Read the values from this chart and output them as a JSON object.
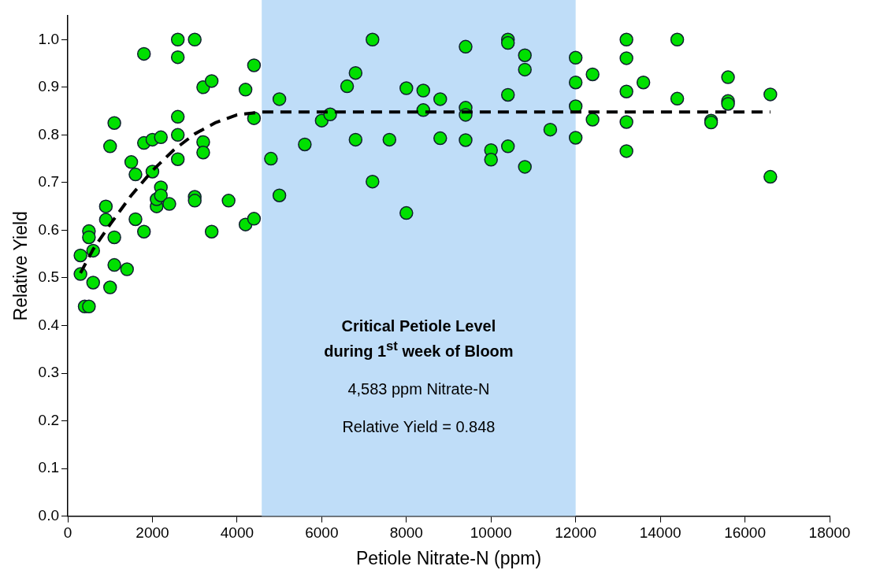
{
  "chart_data": {
    "type": "scatter",
    "xlabel": "Petiole Nitrate-N (ppm)",
    "ylabel": "Relative Yield",
    "xlim": [
      0,
      18000
    ],
    "xticks": [
      0,
      2000,
      4000,
      6000,
      8000,
      10000,
      12000,
      14000,
      16000,
      18000
    ],
    "ylim": [
      0,
      1.05
    ],
    "yticks": [
      {
        "value": 0,
        "label": "0.0"
      },
      0.1,
      0.2,
      0.3,
      0.4,
      0.5,
      0.6,
      0.7,
      0.8,
      0.9,
      {
        "value": 1,
        "label": "1.0"
      }
    ],
    "grid": false,
    "legend": false,
    "marker": "circle",
    "bands": [
      {
        "axis": "x",
        "from": 4583,
        "to": 12000,
        "color": "#bfddf8"
      }
    ],
    "annotations": [
      "Critical Petiole Level during 1$^{st}$ week of Bloom",
      "4,583 ppm Nitrate-N",
      "Relative Yield = 0.848"
    ],
    "series": [
      {
        "color": "#00e000",
        "x": [
          300,
          300,
          400,
          500,
          500,
          500,
          600,
          600,
          900,
          900,
          1000,
          1000,
          1100,
          1100,
          1100,
          1400,
          1500,
          1600,
          1600,
          1800,
          1800,
          1800,
          2000,
          2000,
          2100,
          2100,
          2200,
          2200,
          2200,
          2400,
          2600,
          2600,
          2600,
          2600,
          2600,
          3000,
          3000,
          3000,
          3200,
          3200,
          3200,
          3400,
          3400,
          3800,
          4200,
          4200,
          4400,
          4400,
          4400,
          4800,
          5000,
          5000,
          5600,
          6000,
          6200,
          6600,
          6800,
          6800,
          7200,
          7200,
          7600,
          8000,
          8000,
          8400,
          8400,
          8800,
          8800,
          9400,
          9400,
          9400,
          9400,
          10000,
          10000,
          10400,
          10400,
          10400,
          10400,
          10800,
          10800,
          10800,
          11400,
          12000,
          12000,
          12000,
          12000,
          12400,
          12400,
          13200,
          13200,
          13200,
          13200,
          13200,
          13600,
          14400,
          14400,
          15200,
          15200,
          15600,
          15600,
          15600,
          16600,
          16600
        ],
        "values": [
          0.547,
          0.508,
          0.44,
          0.44,
          0.598,
          0.585,
          0.557,
          0.49,
          0.65,
          0.622,
          0.48,
          0.776,
          0.825,
          0.585,
          0.527,
          0.518,
          0.743,
          0.623,
          0.717,
          0.97,
          0.783,
          0.597,
          0.79,
          0.723,
          0.65,
          0.665,
          0.795,
          0.69,
          0.673,
          0.655,
          1.0,
          0.963,
          0.838,
          0.8,
          0.749,
          1.0,
          0.67,
          0.662,
          0.9,
          0.785,
          0.763,
          0.913,
          0.597,
          0.662,
          0.895,
          0.612,
          0.946,
          0.835,
          0.624,
          0.75,
          0.875,
          0.673,
          0.78,
          0.83,
          0.843,
          0.902,
          0.93,
          0.79,
          1.0,
          0.702,
          0.79,
          0.898,
          0.636,
          0.893,
          0.852,
          0.875,
          0.793,
          0.985,
          0.857,
          0.842,
          0.789,
          0.768,
          0.748,
          1.0,
          0.993,
          0.884,
          0.776,
          0.967,
          0.937,
          0.733,
          0.811,
          0.962,
          0.91,
          0.86,
          0.794,
          0.927,
          0.832,
          1.0,
          0.961,
          0.891,
          0.827,
          0.766,
          0.91,
          1.0,
          0.876,
          0.83,
          0.826,
          0.921,
          0.871,
          0.865,
          0.885,
          0.712
        ]
      },
      {
        "type": "line",
        "color": "#000000",
        "marker": "none",
        "line_style": "dashed",
        "x": [
          300,
          600,
          1000,
          1500,
          2000,
          2500,
          3000,
          3500,
          4000,
          4583,
          16600
        ],
        "values": [
          0.51,
          0.56,
          0.612,
          0.673,
          0.725,
          0.768,
          0.802,
          0.826,
          0.842,
          0.848,
          0.848
        ]
      }
    ]
  }
}
